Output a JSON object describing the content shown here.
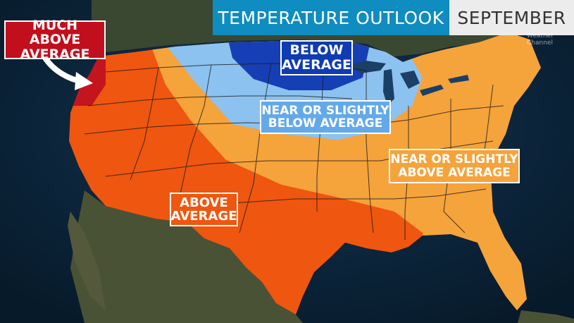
{
  "header": {
    "title": "TEMPERATURE OUTLOOK",
    "month": "SEPTEMBER"
  },
  "logo": {
    "line1": "Weather",
    "line2": "Channel"
  },
  "legend_labels": {
    "much_above": "MUCH ABOVE\nAVERAGE",
    "above": "ABOVE\nAVERAGE",
    "near_above": "NEAR OR SLIGHTLY\nABOVE AVERAGE",
    "near_below": "NEAR OR SLIGHTLY\nBELOW AVERAGE",
    "below": "BELOW\nAVERAGE"
  },
  "colors": {
    "much_above": "#c20f1d",
    "above": "#ef560f",
    "near_above": "#f5a33b",
    "near_below": "#63a9ea",
    "below": "#0f3bb3",
    "title_bar": "#0f8cc0",
    "ocean": "#0b2438",
    "land": "#3c4a34"
  }
}
